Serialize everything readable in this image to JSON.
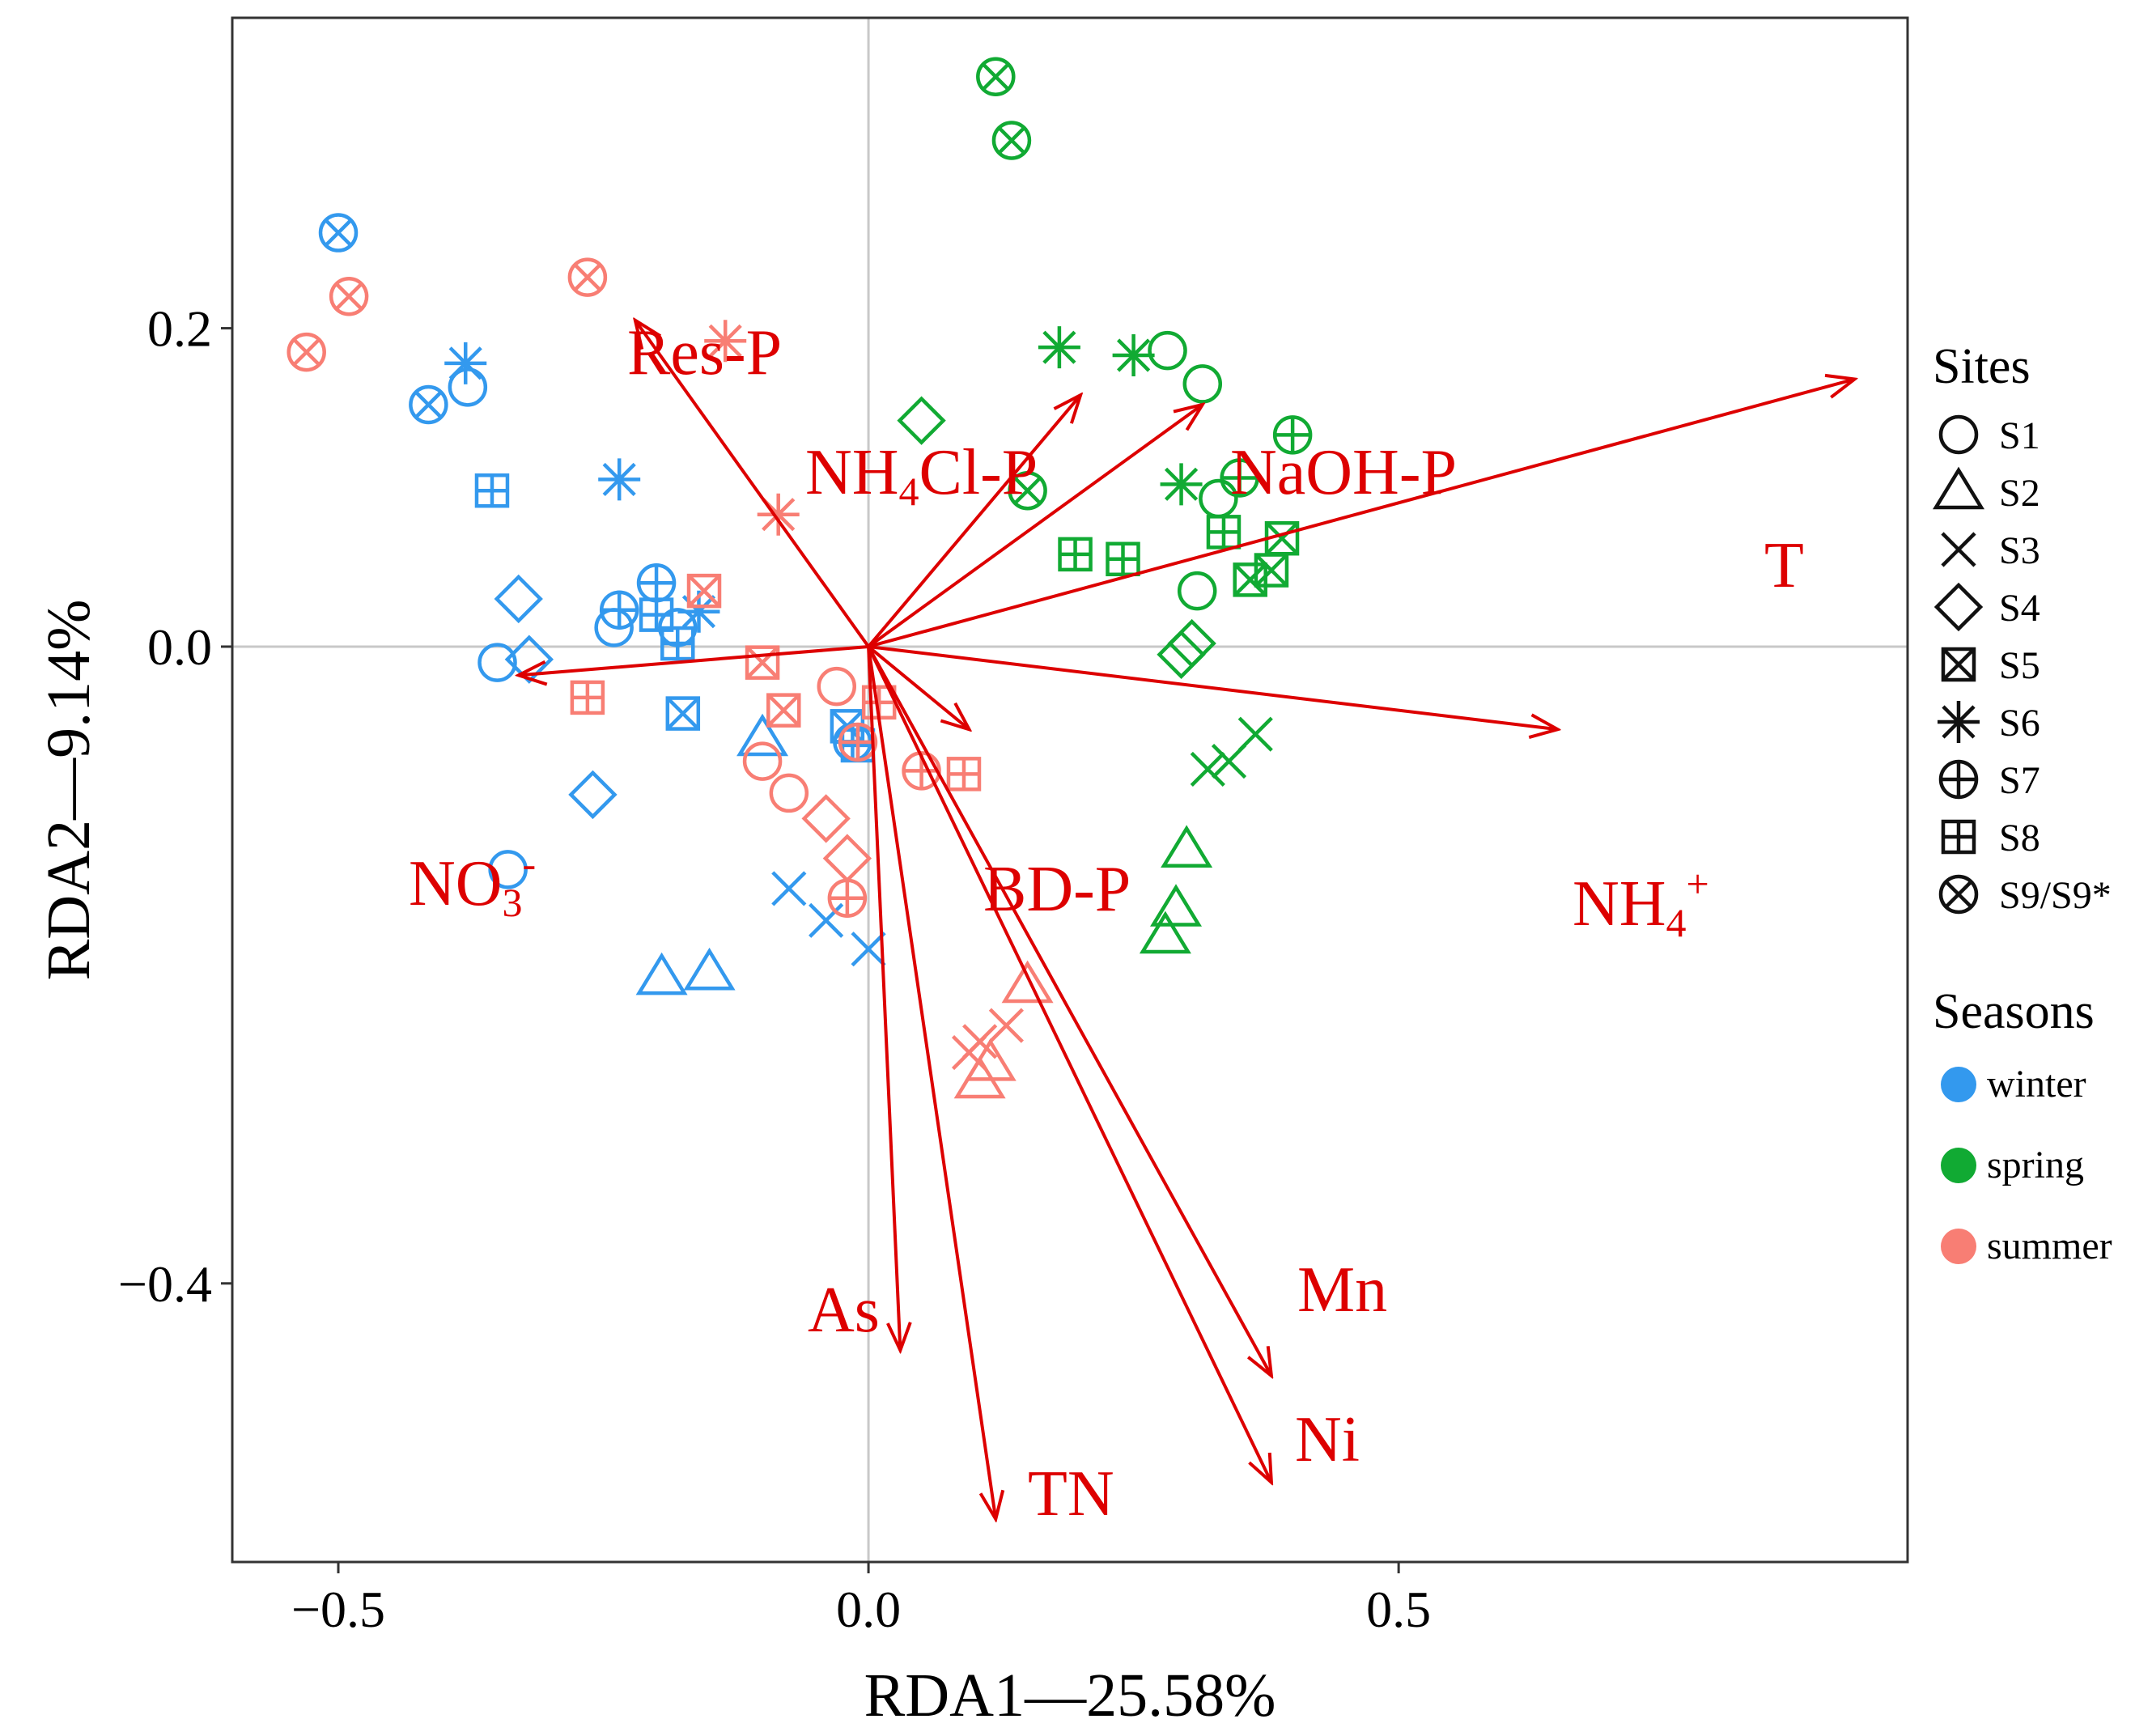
{
  "chart_data": {
    "type": "scatter",
    "subtype": "RDA biplot",
    "title": "",
    "xlabel": "RDA1—25.58%",
    "ylabel": "RDA2—9.14%",
    "xlim": [
      -0.6,
      0.98
    ],
    "ylim": [
      -0.575,
      0.395
    ],
    "xticks": [
      -0.5,
      0.0,
      0.5
    ],
    "xtick_labels": [
      "−0.5",
      "0.0",
      "0.5"
    ],
    "yticks": [
      -0.4,
      0.0,
      0.2
    ],
    "ytick_labels": [
      "−0.4",
      "0.0",
      "0.2"
    ],
    "grid": false,
    "zero_lines": true,
    "colors": {
      "winter": "#3399ee",
      "spring": "#11aa33",
      "summer": "#f87e74",
      "vectors": "#dd0000",
      "reference_lines": "#c8c8c8"
    },
    "vectors": [
      {
        "name": "Res-P",
        "x": -0.22,
        "y": 0.205
      },
      {
        "name": "NH4Cl-P",
        "x": 0.2,
        "y": 0.158
      },
      {
        "name": "NaOH-P",
        "x": 0.315,
        "y": 0.152
      },
      {
        "name": "T",
        "x": 0.93,
        "y": 0.168
      },
      {
        "name": "NO3-",
        "x": -0.33,
        "y": -0.018
      },
      {
        "name": "BD-P",
        "x": 0.095,
        "y": -0.052
      },
      {
        "name": "NH4+",
        "x": 0.65,
        "y": -0.052
      },
      {
        "name": "As",
        "x": 0.03,
        "y": -0.442
      },
      {
        "name": "TN",
        "x": 0.12,
        "y": -0.548
      },
      {
        "name": "Mn",
        "x": 0.38,
        "y": -0.458
      },
      {
        "name": "Ni",
        "x": 0.38,
        "y": -0.525
      }
    ],
    "vector_labels": [
      {
        "name": "Res-P",
        "parts": [
          {
            "t": "Res-P"
          }
        ]
      },
      {
        "name": "NH4Cl-P",
        "parts": [
          {
            "t": "NH"
          },
          {
            "t": "4",
            "s": "sub"
          },
          {
            "t": "Cl-P"
          }
        ]
      },
      {
        "name": "NaOH-P",
        "parts": [
          {
            "t": "NaOH-P"
          }
        ]
      },
      {
        "name": "T",
        "parts": [
          {
            "t": "T"
          }
        ]
      },
      {
        "name": "NO3-",
        "parts": [
          {
            "t": "NO"
          },
          {
            "t": "3",
            "s": "sub"
          },
          {
            "t": "-",
            "s": "sup"
          }
        ]
      },
      {
        "name": "BD-P",
        "parts": [
          {
            "t": "BD-P"
          }
        ]
      },
      {
        "name": "NH4+",
        "parts": [
          {
            "t": "NH"
          },
          {
            "t": "4",
            "s": "sub"
          },
          {
            "t": "+",
            "s": "sup"
          }
        ]
      },
      {
        "name": "As",
        "parts": [
          {
            "t": "As"
          }
        ]
      },
      {
        "name": "TN",
        "parts": [
          {
            "t": "TN"
          }
        ]
      },
      {
        "name": "Mn",
        "parts": [
          {
            "t": "Mn"
          }
        ]
      },
      {
        "name": "Ni",
        "parts": [
          {
            "t": "Ni"
          }
        ]
      }
    ],
    "points": [
      {
        "season": "winter",
        "site": "S9",
        "x": -0.5,
        "y": 0.26
      },
      {
        "season": "winter",
        "site": "S6",
        "x": -0.38,
        "y": 0.178
      },
      {
        "season": "winter",
        "site": "S1",
        "x": -0.378,
        "y": 0.163
      },
      {
        "season": "winter",
        "site": "S9",
        "x": -0.415,
        "y": 0.152
      },
      {
        "season": "winter",
        "site": "S8",
        "x": -0.355,
        "y": 0.098
      },
      {
        "season": "winter",
        "site": "S6",
        "x": -0.235,
        "y": 0.105
      },
      {
        "season": "winter",
        "site": "S4",
        "x": -0.33,
        "y": 0.03
      },
      {
        "season": "winter",
        "site": "S7",
        "x": -0.2,
        "y": 0.04
      },
      {
        "season": "winter",
        "site": "S7",
        "x": -0.235,
        "y": 0.023
      },
      {
        "season": "winter",
        "site": "S1",
        "x": -0.24,
        "y": 0.012
      },
      {
        "season": "winter",
        "site": "S8",
        "x": -0.2,
        "y": 0.02
      },
      {
        "season": "winter",
        "site": "S6",
        "x": -0.16,
        "y": 0.022
      },
      {
        "season": "winter",
        "site": "S1",
        "x": -0.18,
        "y": 0.012
      },
      {
        "season": "winter",
        "site": "S8",
        "x": -0.18,
        "y": 0.002
      },
      {
        "season": "winter",
        "site": "S4",
        "x": -0.32,
        "y": -0.008
      },
      {
        "season": "winter",
        "site": "S1",
        "x": -0.35,
        "y": -0.01
      },
      {
        "season": "winter",
        "site": "S5",
        "x": -0.175,
        "y": -0.042
      },
      {
        "season": "winter",
        "site": "S2",
        "x": -0.1,
        "y": -0.058
      },
      {
        "season": "winter",
        "site": "S5",
        "x": -0.02,
        "y": -0.05
      },
      {
        "season": "winter",
        "site": "S8",
        "x": -0.01,
        "y": -0.062
      },
      {
        "season": "winter",
        "site": "S7",
        "x": -0.015,
        "y": -0.06
      },
      {
        "season": "winter",
        "site": "S4",
        "x": -0.26,
        "y": -0.093
      },
      {
        "season": "winter",
        "site": "S1",
        "x": -0.34,
        "y": -0.14
      },
      {
        "season": "winter",
        "site": "S3",
        "x": -0.075,
        "y": -0.152
      },
      {
        "season": "winter",
        "site": "S3",
        "x": -0.04,
        "y": -0.172
      },
      {
        "season": "winter",
        "site": "S3",
        "x": 0.0,
        "y": -0.19
      },
      {
        "season": "winter",
        "site": "S2",
        "x": -0.195,
        "y": -0.208
      },
      {
        "season": "winter",
        "site": "S2",
        "x": -0.15,
        "y": -0.205
      },
      {
        "season": "spring",
        "site": "S9",
        "x": 0.12,
        "y": 0.358
      },
      {
        "season": "spring",
        "site": "S9",
        "x": 0.135,
        "y": 0.318
      },
      {
        "season": "spring",
        "site": "S6",
        "x": 0.18,
        "y": 0.188
      },
      {
        "season": "spring",
        "site": "S6",
        "x": 0.25,
        "y": 0.183
      },
      {
        "season": "spring",
        "site": "S1",
        "x": 0.282,
        "y": 0.186
      },
      {
        "season": "spring",
        "site": "S1",
        "x": 0.315,
        "y": 0.165
      },
      {
        "season": "spring",
        "site": "S4",
        "x": 0.05,
        "y": 0.142
      },
      {
        "season": "spring",
        "site": "S7",
        "x": 0.4,
        "y": 0.133
      },
      {
        "season": "spring",
        "site": "S9",
        "x": 0.15,
        "y": 0.098
      },
      {
        "season": "spring",
        "site": "S6",
        "x": 0.295,
        "y": 0.102
      },
      {
        "season": "spring",
        "site": "S7",
        "x": 0.35,
        "y": 0.106
      },
      {
        "season": "spring",
        "site": "S1",
        "x": 0.33,
        "y": 0.093
      },
      {
        "season": "spring",
        "site": "S8",
        "x": 0.335,
        "y": 0.072
      },
      {
        "season": "spring",
        "site": "S5",
        "x": 0.39,
        "y": 0.068
      },
      {
        "season": "spring",
        "site": "S8",
        "x": 0.195,
        "y": 0.058
      },
      {
        "season": "spring",
        "site": "S8",
        "x": 0.24,
        "y": 0.055
      },
      {
        "season": "spring",
        "site": "S5",
        "x": 0.38,
        "y": 0.048
      },
      {
        "season": "spring",
        "site": "S5",
        "x": 0.36,
        "y": 0.042
      },
      {
        "season": "spring",
        "site": "S1",
        "x": 0.31,
        "y": 0.035
      },
      {
        "season": "spring",
        "site": "S4",
        "x": 0.305,
        "y": 0.002
      },
      {
        "season": "spring",
        "site": "S4",
        "x": 0.295,
        "y": -0.005
      },
      {
        "season": "spring",
        "site": "S3",
        "x": 0.365,
        "y": -0.055
      },
      {
        "season": "spring",
        "site": "S3",
        "x": 0.34,
        "y": -0.072
      },
      {
        "season": "spring",
        "site": "S3",
        "x": 0.32,
        "y": -0.077
      },
      {
        "season": "spring",
        "site": "S2",
        "x": 0.3,
        "y": -0.128
      },
      {
        "season": "spring",
        "site": "S2",
        "x": 0.29,
        "y": -0.165
      },
      {
        "season": "spring",
        "site": "S2",
        "x": 0.28,
        "y": -0.182
      },
      {
        "season": "summer",
        "site": "S9",
        "x": -0.265,
        "y": 0.232
      },
      {
        "season": "summer",
        "site": "S9",
        "x": -0.49,
        "y": 0.22
      },
      {
        "season": "summer",
        "site": "S9",
        "x": -0.53,
        "y": 0.185
      },
      {
        "season": "summer",
        "site": "S6",
        "x": -0.135,
        "y": 0.192
      },
      {
        "season": "summer",
        "site": "S6",
        "x": -0.085,
        "y": 0.083
      },
      {
        "season": "summer",
        "site": "S5",
        "x": -0.155,
        "y": 0.035
      },
      {
        "season": "summer",
        "site": "S5",
        "x": -0.1,
        "y": -0.01
      },
      {
        "season": "summer",
        "site": "S8",
        "x": -0.265,
        "y": -0.032
      },
      {
        "season": "summer",
        "site": "S5",
        "x": -0.08,
        "y": -0.04
      },
      {
        "season": "summer",
        "site": "S1",
        "x": -0.03,
        "y": -0.025
      },
      {
        "season": "summer",
        "site": "S8",
        "x": 0.01,
        "y": -0.035
      },
      {
        "season": "summer",
        "site": "S7",
        "x": -0.01,
        "y": -0.06
      },
      {
        "season": "summer",
        "site": "S1",
        "x": -0.1,
        "y": -0.072
      },
      {
        "season": "summer",
        "site": "S7",
        "x": 0.05,
        "y": -0.078
      },
      {
        "season": "summer",
        "site": "S8",
        "x": 0.09,
        "y": -0.08
      },
      {
        "season": "summer",
        "site": "S1",
        "x": -0.075,
        "y": -0.092
      },
      {
        "season": "summer",
        "site": "S4",
        "x": -0.04,
        "y": -0.108
      },
      {
        "season": "summer",
        "site": "S4",
        "x": -0.02,
        "y": -0.133
      },
      {
        "season": "summer",
        "site": "S7",
        "x": -0.02,
        "y": -0.158
      },
      {
        "season": "summer",
        "site": "S2",
        "x": 0.15,
        "y": -0.213
      },
      {
        "season": "summer",
        "site": "S3",
        "x": 0.13,
        "y": -0.238
      },
      {
        "season": "summer",
        "site": "S3",
        "x": 0.105,
        "y": -0.248
      },
      {
        "season": "summer",
        "site": "S3",
        "x": 0.095,
        "y": -0.255
      },
      {
        "season": "summer",
        "site": "S2",
        "x": 0.115,
        "y": -0.262
      },
      {
        "season": "summer",
        "site": "S2",
        "x": 0.105,
        "y": -0.273
      }
    ],
    "legend_sites": {
      "title": "Sites",
      "position": "right",
      "items": [
        {
          "shape": "S1",
          "label": "S1"
        },
        {
          "shape": "S2",
          "label": "S2"
        },
        {
          "shape": "S3",
          "label": "S3"
        },
        {
          "shape": "S4",
          "label": "S4"
        },
        {
          "shape": "S5",
          "label": "S5"
        },
        {
          "shape": "S6",
          "label": "S6"
        },
        {
          "shape": "S7",
          "label": "S7"
        },
        {
          "shape": "S8",
          "label": "S8"
        },
        {
          "shape": "S9",
          "label": "S9/S9*"
        }
      ]
    },
    "legend_seasons": {
      "title": "Seasons",
      "position": "right",
      "items": [
        {
          "key": "winter",
          "label": "winter"
        },
        {
          "key": "spring",
          "label": "spring"
        },
        {
          "key": "summer",
          "label": "summer"
        }
      ]
    }
  }
}
